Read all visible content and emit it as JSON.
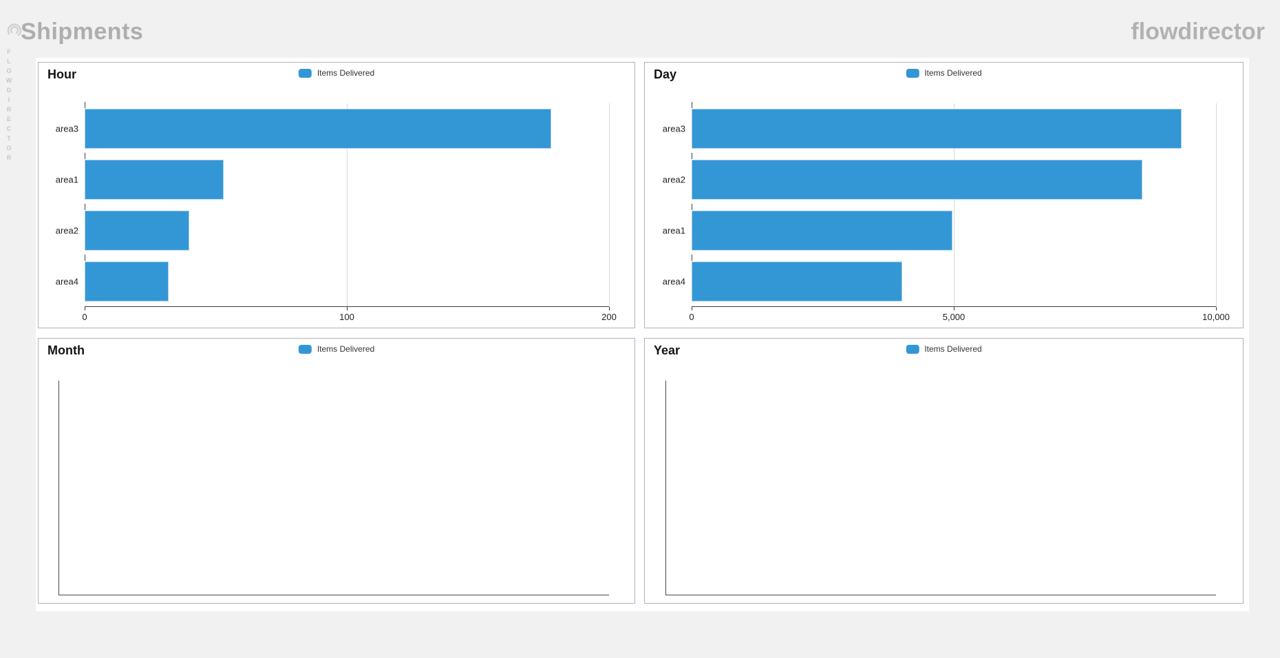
{
  "header": {
    "title": "Shipments",
    "brand": "flowdirector",
    "vertical_label": "FLOWDIRECTOR"
  },
  "colors": {
    "bar_fill": "#3497d5",
    "bar_border": "#a6cfea",
    "grid_line": "#d8d8d8",
    "axis_line": "#3d3d3d"
  },
  "chart_data": [
    {
      "type": "bar",
      "orientation": "horizontal",
      "title": "Hour",
      "legend": "Items Delivered",
      "categories": [
        "area3",
        "area1",
        "area2",
        "area4"
      ],
      "values": [
        178,
        53,
        40,
        32
      ],
      "xlim": [
        0,
        200
      ],
      "xticks": [
        {
          "value": 0,
          "label": "0"
        },
        {
          "value": 100,
          "label": "100"
        },
        {
          "value": 200,
          "label": "200"
        }
      ]
    },
    {
      "type": "bar",
      "orientation": "horizontal",
      "title": "Day",
      "legend": "Items Delivered",
      "categories": [
        "area3",
        "area2",
        "area1",
        "area4"
      ],
      "values": [
        9340,
        8590,
        4970,
        4020
      ],
      "xlim": [
        0,
        10000
      ],
      "xticks": [
        {
          "value": 0,
          "label": "0"
        },
        {
          "value": 5000,
          "label": "5,000"
        },
        {
          "value": 10000,
          "label": "10,000"
        }
      ]
    },
    {
      "type": "bar",
      "orientation": "horizontal",
      "title": "Month",
      "legend": "Items Delivered",
      "categories": [],
      "values": [],
      "xlim": [
        0,
        0
      ],
      "xticks": []
    },
    {
      "type": "bar",
      "orientation": "horizontal",
      "title": "Year",
      "legend": "Items Delivered",
      "categories": [],
      "values": [],
      "xlim": [
        0,
        0
      ],
      "xticks": []
    }
  ]
}
